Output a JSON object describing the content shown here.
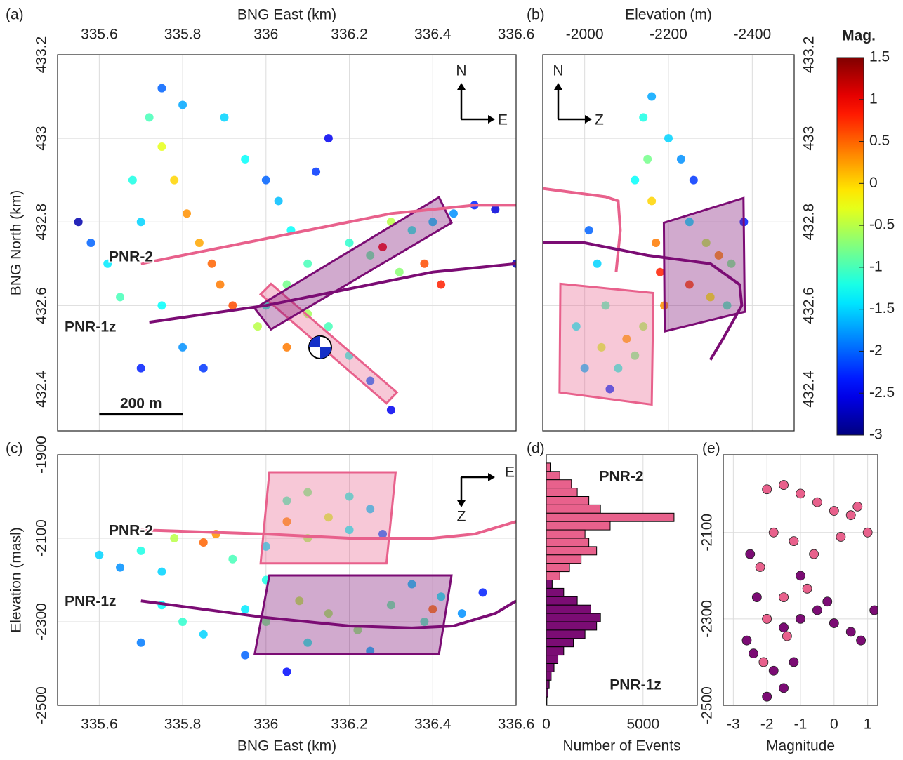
{
  "chart_data": [
    {
      "type": "scatter",
      "panel_label": "(a)",
      "xlabel": "BNG East (km)",
      "ylabel": "BNG North (km)",
      "xlim": [
        335.5,
        336.6
      ],
      "ylim": [
        432.3,
        433.2
      ],
      "xticks": [
        335.6,
        335.8,
        336,
        336.2,
        336.4,
        336.6
      ],
      "yticks": [
        432.4,
        432.6,
        432.8,
        433,
        433.2
      ],
      "grid": true,
      "compass": [
        "N",
        "E"
      ],
      "x": [
        335.72,
        335.75,
        335.78,
        335.81,
        335.84,
        335.87,
        335.89,
        335.92,
        335.68,
        335.7,
        335.62,
        335.65,
        335.58,
        335.75,
        335.8,
        335.85,
        336.0,
        336.03,
        336.06,
        336.1,
        336.05,
        336.0,
        335.98,
        336.05,
        336.1,
        336.15,
        336.2,
        336.25,
        336.2,
        336.25,
        336.3,
        336.35,
        336.4,
        336.45,
        336.5,
        336.55,
        336.32,
        336.38,
        336.28,
        336.42,
        335.8,
        335.75,
        335.9,
        335.95,
        336.15,
        336.12,
        335.55,
        336.3,
        336.6,
        335.7
      ],
      "values": [
        433.05,
        432.98,
        432.9,
        432.82,
        432.75,
        432.7,
        432.65,
        432.6,
        432.9,
        432.8,
        432.7,
        432.62,
        432.75,
        432.6,
        432.5,
        432.45,
        432.9,
        432.85,
        432.78,
        432.7,
        432.65,
        432.6,
        432.55,
        432.5,
        432.58,
        432.55,
        432.48,
        432.42,
        432.75,
        432.72,
        432.8,
        432.78,
        432.8,
        432.82,
        432.84,
        432.83,
        432.68,
        432.7,
        432.74,
        432.65,
        433.08,
        433.12,
        433.05,
        432.95,
        433.0,
        432.92,
        432.8,
        432.35,
        432.7,
        432.45
      ],
      "magnitudes": [
        -1,
        -0.3,
        0,
        0.3,
        0.2,
        0.5,
        0.4,
        0.6,
        -1.2,
        -1.5,
        -1.4,
        -1,
        -2,
        -1.3,
        -1.8,
        -2.2,
        -2,
        -1.6,
        -1.3,
        -1,
        -0.8,
        -1.1,
        -0.5,
        0.4,
        -0.6,
        -1,
        -1.2,
        -2,
        -1.1,
        -0.9,
        -0.5,
        -1.2,
        -1.5,
        -1.8,
        -2.3,
        -2.6,
        -0.7,
        0.6,
        1,
        0.8,
        -1.7,
        -2,
        -1.5,
        -1.3,
        -2.5,
        -2.2,
        -2.8,
        -2.5,
        -2.7,
        -2.3
      ],
      "wells": [
        {
          "name": "PNR-2",
          "color": "#e8618c",
          "x": [
            335.7,
            335.9,
            336.1,
            336.3,
            336.5,
            336.6
          ],
          "values": [
            432.7,
            432.74,
            432.78,
            432.82,
            432.84,
            432.84
          ]
        },
        {
          "name": "PNR-1z",
          "color": "#7b0c74",
          "x": [
            335.72,
            336.0,
            336.2,
            336.4,
            336.6
          ],
          "values": [
            432.56,
            432.6,
            432.64,
            432.68,
            432.7
          ]
        }
      ],
      "polygons": [
        {
          "color": "#e8618c",
          "x": [
            335.987,
            336.012,
            336.314,
            336.289
          ],
          "values": [
            432.627,
            432.652,
            432.392,
            432.366
          ]
        },
        {
          "color": "#7b0c74",
          "x": [
            335.973,
            336.415,
            336.445,
            336.012
          ],
          "values": [
            432.593,
            432.859,
            432.798,
            432.543
          ]
        }
      ],
      "focal_mechanism": {
        "x": 336.13,
        "y": 432.5
      },
      "scale_bar": {
        "label": "200 m",
        "x": [
          335.6,
          335.8
        ],
        "y": 432.34
      }
    },
    {
      "type": "scatter",
      "panel_label": "(b)",
      "xlabel": "Elevation (m)",
      "xlim": [
        -1900,
        -2500
      ],
      "ylim": [
        432.3,
        433.2
      ],
      "xticks": [
        -2000,
        -2200,
        -2400
      ],
      "yticks": [
        432.4,
        432.6,
        432.8,
        433,
        433.2
      ],
      "grid": true,
      "compass": [
        "N",
        "Z"
      ],
      "x": [
        -2140,
        -2150,
        -2160,
        -2170,
        -2180,
        -2190,
        -2120,
        -2200,
        -2230,
        -2260,
        -2250,
        -2290,
        -2320,
        -2350,
        -2380,
        -2300,
        -2340,
        -2010,
        -2030,
        -2050,
        -1980,
        -2040,
        -2100,
        -2000,
        -2080,
        -2120,
        -2060,
        -2140,
        -2160,
        -2250
      ],
      "values": [
        433.05,
        432.95,
        432.85,
        432.75,
        432.68,
        432.6,
        432.9,
        433.0,
        432.95,
        432.9,
        432.8,
        432.75,
        432.72,
        432.7,
        432.8,
        432.62,
        432.6,
        432.78,
        432.7,
        432.6,
        432.55,
        432.5,
        432.52,
        432.45,
        432.45,
        432.48,
        432.4,
        432.55,
        433.1,
        432.65
      ],
      "magnitudes": [
        -1.2,
        -0.8,
        0,
        0.4,
        0.8,
        0.3,
        -1.3,
        -1.5,
        -1.8,
        -2.2,
        -1.4,
        -0.5,
        0.3,
        -0.8,
        -2.3,
        -0.2,
        -1,
        -2,
        -1.5,
        -1,
        -1.3,
        -0.4,
        0.2,
        -1.6,
        -1.2,
        -0.8,
        -2.2,
        -0.6,
        -1.7,
        0.6
      ],
      "wells": [
        {
          "color": "#e8618c",
          "x": [
            -1900,
            -2050,
            -2080,
            -2085,
            -2075
          ],
          "values": [
            432.88,
            432.86,
            432.85,
            432.78,
            432.68
          ]
        },
        {
          "color": "#7b0c74",
          "x": [
            -1900,
            -2000,
            -2150,
            -2300,
            -2370,
            -2375,
            -2330,
            -2300
          ],
          "values": [
            432.75,
            432.75,
            432.72,
            432.7,
            432.65,
            432.6,
            432.52,
            432.47
          ]
        }
      ],
      "polygons": [
        {
          "color": "#e8618c",
          "x": [
            -1942,
            -2164,
            -2160,
            -1940
          ],
          "values": [
            432.652,
            432.63,
            432.363,
            432.392
          ]
        },
        {
          "color": "#7b0c74",
          "x": [
            -2189,
            -2379,
            -2382,
            -2191
          ],
          "values": [
            432.798,
            432.857,
            432.585,
            432.538
          ]
        }
      ]
    },
    {
      "type": "scatter",
      "panel_label": "(c)",
      "xlabel": "BNG East (km)",
      "ylabel": "Elevation (masl)",
      "xlim": [
        335.5,
        336.6
      ],
      "ylim": [
        -2500,
        -1900
      ],
      "xticks": [
        335.6,
        335.8,
        336,
        336.2,
        336.4,
        336.6
      ],
      "yticks": [
        -1900,
        -2100,
        -2300,
        -2500
      ],
      "grid": true,
      "compass": [
        "E",
        "Z"
      ],
      "x": [
        335.6,
        335.7,
        335.78,
        335.85,
        335.88,
        335.65,
        335.75,
        335.92,
        336.05,
        336.1,
        336.15,
        336.2,
        336.25,
        336.05,
        336.1,
        336.2,
        336.0,
        336.28,
        335.75,
        335.8,
        335.85,
        335.95,
        336.0,
        336.08,
        336.15,
        336.22,
        336.3,
        336.38,
        336.42,
        336.47,
        336.52,
        336.1,
        336.25,
        335.95,
        336.4,
        336.35,
        336.05,
        335.7,
        336.0
      ],
      "values": [
        -2140,
        -2130,
        -2100,
        -2110,
        -2090,
        -2170,
        -2180,
        -2150,
        -2010,
        -1990,
        -2050,
        -2000,
        -2030,
        -2060,
        -2100,
        -2080,
        -2120,
        -2090,
        -2260,
        -2300,
        -2330,
        -2270,
        -2300,
        -2250,
        -2280,
        -2320,
        -2260,
        -2300,
        -2240,
        -2280,
        -2230,
        -2350,
        -2370,
        -2380,
        -2270,
        -2210,
        -2420,
        -2350,
        -2200
      ],
      "magnitudes": [
        -1.5,
        -1.2,
        -0.5,
        0.5,
        0.3,
        -1.8,
        -1.5,
        -1,
        -1,
        -0.8,
        -0.4,
        -1.2,
        -1.5,
        0.3,
        -0.6,
        -1.3,
        -1.4,
        -2,
        -1.3,
        -1.1,
        -1.5,
        -1.4,
        -0.8,
        -0.5,
        -0.6,
        -0.7,
        -0.9,
        -1,
        -1.3,
        -1.8,
        -2.3,
        -1.2,
        -1.6,
        -2,
        0.4,
        -1.5,
        -2.4,
        -1.9,
        -1.2
      ],
      "wells": [
        {
          "name": "PNR-2",
          "color": "#e8618c",
          "x": [
            335.7,
            336.0,
            336.2,
            336.4,
            336.5,
            336.6
          ],
          "values": [
            -2080,
            -2090,
            -2100,
            -2100,
            -2090,
            -2060
          ]
        },
        {
          "name": "PNR-1z",
          "color": "#7b0c74",
          "x": [
            335.7,
            336.0,
            336.2,
            336.35,
            336.45,
            336.55,
            336.6
          ],
          "values": [
            -2250,
            -2290,
            -2310,
            -2315,
            -2310,
            -2280,
            -2250
          ]
        }
      ],
      "polygons": [
        {
          "color": "#e8618c",
          "x": [
            336.008,
            336.311,
            336.289,
            335.987
          ],
          "values": [
            -1942,
            -1942,
            -2160,
            -2160
          ]
        },
        {
          "color": "#7b0c74",
          "x": [
            336.008,
            336.445,
            336.415,
            335.973
          ],
          "values": [
            -2189,
            -2189,
            -2377,
            -2377
          ]
        }
      ]
    },
    {
      "type": "histogram",
      "panel_label": "(d)",
      "xlabel": "Number of Events",
      "xlim": [
        0,
        7800
      ],
      "ylim": [
        -2500,
        -1900
      ],
      "xticks": [
        0,
        5000
      ],
      "grid": true,
      "bins": [
        -1900,
        -1920,
        -1940,
        -1960,
        -1980,
        -2000,
        -2020,
        -2040,
        -2060,
        -2080,
        -2100,
        -2120,
        -2140,
        -2160,
        -2180,
        -2200,
        -2220,
        -2240,
        -2260,
        -2280,
        -2300,
        -2320,
        -2340,
        -2360,
        -2380,
        -2400,
        -2420,
        -2440,
        -2460,
        -2480,
        -2500
      ],
      "series": [
        {
          "name": "PNR-2",
          "color": "#e8618c",
          "values": [
            0,
            200,
            700,
            1300,
            1600,
            2200,
            2800,
            6600,
            3300,
            2000,
            2200,
            2600,
            1800,
            1200,
            700,
            300,
            0,
            0,
            0,
            0,
            0,
            0,
            0,
            0,
            0,
            0,
            0,
            0,
            0,
            0
          ]
        },
        {
          "name": "PNR-1z",
          "color": "#7b0c74",
          "values": [
            0,
            0,
            0,
            0,
            0,
            0,
            0,
            0,
            0,
            0,
            0,
            0,
            0,
            0,
            0,
            300,
            900,
            1600,
            2300,
            2800,
            2600,
            2000,
            1400,
            900,
            600,
            400,
            250,
            150,
            80,
            30
          ]
        }
      ]
    },
    {
      "type": "scatter2",
      "panel_label": "(e)",
      "xlabel": "Magnitude",
      "xlim": [
        -3.3,
        1.3
      ],
      "ylim": [
        -2500,
        -1920
      ],
      "xticks": [
        -3,
        -2,
        -1,
        0,
        1
      ],
      "yticks": [
        -2100,
        -2300,
        -2500
      ],
      "grid": true,
      "series": [
        {
          "color": "#7b0c74",
          "x": [
            -2.5,
            -2.3,
            -2,
            -1.5,
            -1,
            -0.5,
            0,
            0.5,
            -2.4,
            -1.8,
            -1.2,
            -2,
            -1.5,
            -2.6,
            -0.2,
            1.2,
            0.8,
            -1
          ],
          "values": [
            -2150,
            -2250,
            -2300,
            -2320,
            -2300,
            -2280,
            -2310,
            -2330,
            -2380,
            -2420,
            -2400,
            -2480,
            -2460,
            -2350,
            -2260,
            -2280,
            -2350,
            -2200
          ]
        },
        {
          "color": "#e8618c",
          "x": [
            -2,
            -1.5,
            -1,
            -0.5,
            0,
            0.5,
            -1.8,
            -1.2,
            -0.6,
            0.2,
            1,
            -2.2,
            -1.5,
            -0.8,
            -2,
            -1.4,
            0.7,
            -2.1
          ],
          "values": [
            -2000,
            -1990,
            -2010,
            -2030,
            -2050,
            -2060,
            -2100,
            -2120,
            -2150,
            -2110,
            -2100,
            -2180,
            -2250,
            -2230,
            -2300,
            -2340,
            -2040,
            -2400
          ]
        }
      ]
    },
    {
      "type": "colorbar",
      "title": "Mag.",
      "lim": [
        -3,
        1.5
      ],
      "ticks": [
        -3,
        -2.5,
        -2,
        -1.5,
        -1,
        -0.5,
        0,
        0.5,
        1,
        1.5
      ]
    }
  ]
}
